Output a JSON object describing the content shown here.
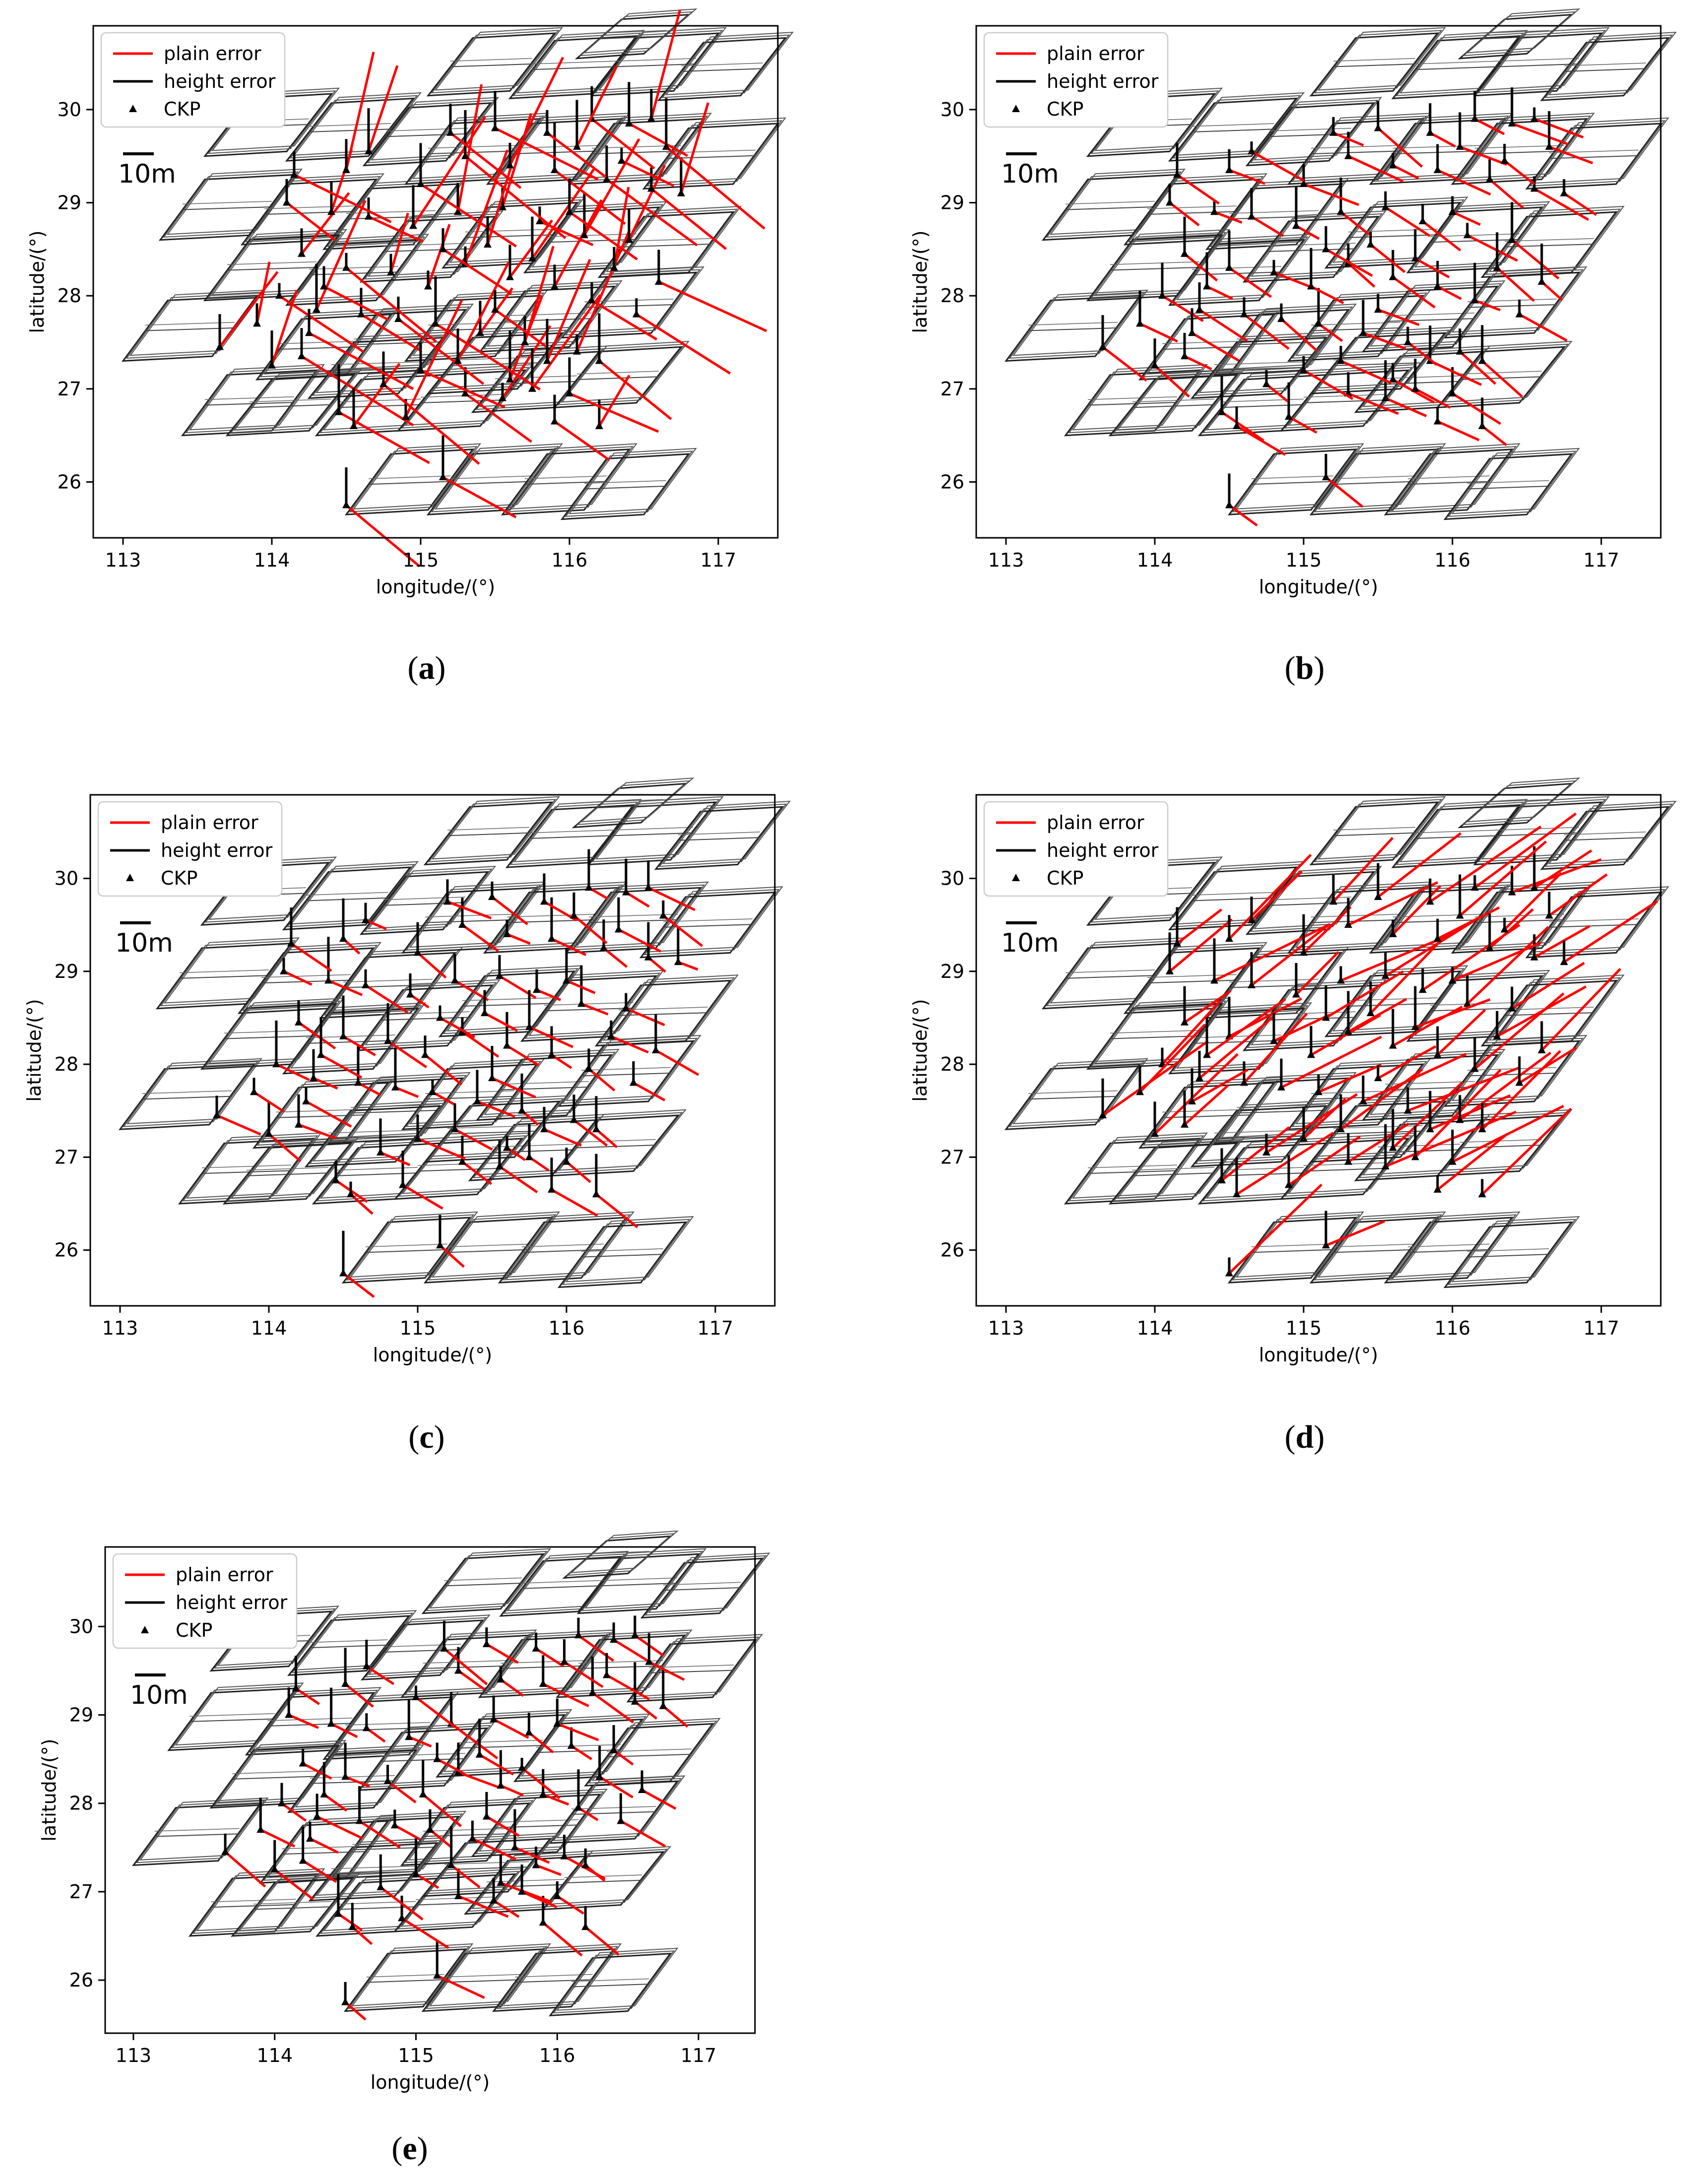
{
  "figure": {
    "panels": [
      {
        "id": "a",
        "caption_open": "(",
        "caption_letter": "a",
        "caption_close": ")",
        "plain_scale": 3.0,
        "height_scale": 1.0
      },
      {
        "id": "b",
        "caption_open": "(",
        "caption_letter": "b",
        "caption_close": ")",
        "plain_scale": 1.4,
        "height_scale": 0.8
      },
      {
        "id": "c",
        "caption_open": "(",
        "caption_letter": "c",
        "caption_close": ")",
        "plain_scale": 1.2,
        "height_scale": 0.9
      },
      {
        "id": "d",
        "caption_open": "(",
        "caption_letter": "d",
        "caption_close": ")",
        "plain_scale": 3.2,
        "height_scale": 0.9
      },
      {
        "id": "e",
        "caption_open": "(",
        "caption_letter": "e",
        "caption_close": ")",
        "plain_scale": 1.3,
        "height_scale": 0.8
      }
    ]
  },
  "chart_data": [
    {
      "panel": "a",
      "type": "scatter",
      "title": "",
      "xlabel": "longitude/(°)",
      "ylabel": "latitude/(°)",
      "xlim": [
        112.8,
        117.4
      ],
      "ylim": [
        25.4,
        30.9
      ],
      "xticks": [
        "113",
        "114",
        "115",
        "116",
        "117"
      ],
      "yticks": [
        "26",
        "27",
        "28",
        "29",
        "30"
      ],
      "legend": {
        "position": "top-left",
        "entries": [
          "plain error",
          "height error",
          "CKP"
        ]
      },
      "scale_bar_label": "10m",
      "series": [
        {
          "name": "CKP"
        },
        {
          "name": "plain error"
        },
        {
          "name": "height error"
        }
      ]
    },
    {
      "panel": "b",
      "type": "scatter",
      "title": "",
      "xlabel": "longitude/(°)",
      "ylabel": "latitude/(°)",
      "xlim": [
        112.8,
        117.4
      ],
      "ylim": [
        25.4,
        30.9
      ],
      "xticks": [
        "113",
        "114",
        "115",
        "116",
        "117"
      ],
      "yticks": [
        "26",
        "27",
        "28",
        "29",
        "30"
      ],
      "legend": {
        "position": "top-left",
        "entries": [
          "plain error",
          "height error",
          "CKP"
        ]
      },
      "scale_bar_label": "10m",
      "series": [
        {
          "name": "CKP"
        },
        {
          "name": "plain error"
        },
        {
          "name": "height error"
        }
      ]
    },
    {
      "panel": "c",
      "type": "scatter",
      "title": "",
      "xlabel": "longitude/(°)",
      "ylabel": "latitude/(°)",
      "xlim": [
        112.8,
        117.4
      ],
      "ylim": [
        25.4,
        30.9
      ],
      "xticks": [
        "113",
        "114",
        "115",
        "116",
        "117"
      ],
      "yticks": [
        "26",
        "27",
        "28",
        "29",
        "30"
      ],
      "legend": {
        "position": "top-left",
        "entries": [
          "plain error",
          "height error",
          "CKP"
        ]
      },
      "scale_bar_label": "10m",
      "series": [
        {
          "name": "CKP"
        },
        {
          "name": "plain error"
        },
        {
          "name": "height error"
        }
      ]
    },
    {
      "panel": "d",
      "type": "scatter",
      "title": "",
      "xlabel": "longitude/(°)",
      "ylabel": "latitude/(°)",
      "xlim": [
        112.8,
        117.4
      ],
      "ylim": [
        25.4,
        30.9
      ],
      "xticks": [
        "113",
        "114",
        "115",
        "116",
        "117"
      ],
      "yticks": [
        "26",
        "27",
        "28",
        "29",
        "30"
      ],
      "legend": {
        "position": "top-left",
        "entries": [
          "plain error",
          "height error",
          "CKP"
        ]
      },
      "scale_bar_label": "10m",
      "series": [
        {
          "name": "CKP"
        },
        {
          "name": "plain error"
        },
        {
          "name": "height error"
        }
      ]
    },
    {
      "panel": "e",
      "type": "scatter",
      "title": "",
      "xlabel": "longitude/(°)",
      "ylabel": "latitude/(°)",
      "xlim": [
        112.8,
        117.4
      ],
      "ylim": [
        25.4,
        30.9
      ],
      "xticks": [
        "113",
        "114",
        "115",
        "116",
        "117"
      ],
      "yticks": [
        "26",
        "27",
        "28",
        "29",
        "30"
      ],
      "legend": {
        "position": "top-left",
        "entries": [
          "plain error",
          "height error",
          "CKP"
        ]
      },
      "scale_bar_label": "10m",
      "series": [
        {
          "name": "CKP"
        },
        {
          "name": "plain error"
        },
        {
          "name": "height error"
        }
      ]
    }
  ],
  "ckp_points": [
    [
      114.5,
      25.75
    ],
    [
      115.15,
      26.05
    ],
    [
      113.65,
      27.45
    ],
    [
      114.0,
      27.25
    ],
    [
      114.2,
      27.35
    ],
    [
      114.45,
      26.75
    ],
    [
      114.55,
      26.6
    ],
    [
      114.9,
      26.7
    ],
    [
      115.3,
      26.95
    ],
    [
      115.55,
      26.9
    ],
    [
      115.9,
      26.65
    ],
    [
      116.2,
      26.6
    ],
    [
      115.6,
      27.1
    ],
    [
      115.75,
      27.0
    ],
    [
      116.0,
      26.95
    ],
    [
      115.85,
      27.3
    ],
    [
      116.05,
      27.4
    ],
    [
      116.2,
      27.3
    ],
    [
      114.05,
      28.0
    ],
    [
      114.3,
      27.85
    ],
    [
      114.6,
      27.8
    ],
    [
      114.85,
      27.75
    ],
    [
      115.1,
      27.7
    ],
    [
      115.4,
      27.6
    ],
    [
      115.7,
      27.5
    ],
    [
      114.2,
      28.45
    ],
    [
      114.5,
      28.3
    ],
    [
      114.8,
      28.25
    ],
    [
      115.05,
      28.1
    ],
    [
      115.3,
      28.35
    ],
    [
      115.6,
      28.2
    ],
    [
      115.9,
      28.1
    ],
    [
      116.15,
      27.95
    ],
    [
      116.45,
      27.8
    ],
    [
      114.1,
      29.0
    ],
    [
      114.4,
      28.9
    ],
    [
      114.65,
      28.85
    ],
    [
      114.95,
      28.75
    ],
    [
      115.25,
      28.9
    ],
    [
      115.55,
      28.95
    ],
    [
      115.8,
      28.8
    ],
    [
      116.1,
      28.65
    ],
    [
      116.4,
      28.6
    ],
    [
      116.6,
      28.15
    ],
    [
      114.15,
      29.3
    ],
    [
      114.5,
      29.35
    ],
    [
      115.0,
      29.2
    ],
    [
      115.3,
      29.5
    ],
    [
      115.6,
      29.4
    ],
    [
      115.9,
      29.35
    ],
    [
      116.25,
      29.25
    ],
    [
      116.55,
      29.15
    ],
    [
      116.75,
      29.1
    ],
    [
      115.2,
      29.75
    ],
    [
      115.5,
      29.8
    ],
    [
      115.85,
      29.75
    ],
    [
      116.15,
      29.9
    ],
    [
      116.4,
      29.85
    ],
    [
      116.55,
      29.9
    ],
    [
      116.05,
      29.6
    ],
    [
      116.35,
      29.45
    ],
    [
      114.75,
      27.05
    ],
    [
      115.0,
      27.2
    ],
    [
      115.25,
      27.3
    ],
    [
      114.35,
      28.1
    ],
    [
      115.45,
      28.55
    ],
    [
      115.15,
      28.5
    ],
    [
      116.3,
      28.3
    ],
    [
      115.75,
      28.4
    ],
    [
      116.0,
      28.9
    ],
    [
      114.25,
      27.6
    ],
    [
      113.9,
      27.7
    ],
    [
      115.5,
      27.85
    ],
    [
      114.65,
      29.55
    ],
    [
      116.65,
      29.6
    ]
  ],
  "footprints": [
    [
      113.55,
      29.5,
      0.55,
      0.62
    ],
    [
      114.1,
      29.45,
      0.55,
      0.62
    ],
    [
      114.62,
      29.4,
      0.55,
      0.62
    ],
    [
      115.05,
      30.15,
      0.55,
      0.62
    ],
    [
      115.6,
      30.12,
      0.55,
      0.62
    ],
    [
      116.15,
      30.15,
      0.55,
      0.62
    ],
    [
      116.6,
      30.1,
      0.55,
      0.62
    ],
    [
      116.05,
      30.55,
      0.45,
      0.42
    ],
    [
      113.25,
      28.6,
      0.6,
      0.65
    ],
    [
      113.8,
      28.55,
      0.6,
      0.65
    ],
    [
      114.35,
      28.5,
      0.6,
      0.65
    ],
    [
      114.9,
      29.2,
      0.6,
      0.65
    ],
    [
      115.45,
      29.2,
      0.6,
      0.65
    ],
    [
      116.0,
      29.2,
      0.6,
      0.65
    ],
    [
      116.5,
      29.15,
      0.6,
      0.65
    ],
    [
      113.0,
      27.3,
      0.6,
      0.65
    ],
    [
      113.55,
      27.95,
      0.6,
      0.65
    ],
    [
      114.1,
      27.9,
      0.6,
      0.65
    ],
    [
      114.6,
      28.15,
      0.6,
      0.65
    ],
    [
      115.15,
      28.3,
      0.6,
      0.65
    ],
    [
      115.7,
      28.25,
      0.6,
      0.65
    ],
    [
      116.2,
      28.2,
      0.6,
      0.65
    ],
    [
      113.4,
      26.5,
      0.6,
      0.65
    ],
    [
      113.9,
      27.1,
      0.6,
      0.65
    ],
    [
      114.4,
      27.15,
      0.6,
      0.65
    ],
    [
      114.9,
      27.3,
      0.6,
      0.65
    ],
    [
      115.4,
      27.4,
      0.6,
      0.65
    ],
    [
      115.95,
      27.55,
      0.6,
      0.65
    ],
    [
      113.7,
      26.5,
      0.55,
      0.6
    ],
    [
      114.3,
      26.5,
      0.55,
      0.6
    ],
    [
      114.85,
      26.55,
      0.55,
      0.6
    ],
    [
      115.35,
      26.75,
      0.55,
      0.6
    ],
    [
      115.9,
      26.8,
      0.55,
      0.6
    ],
    [
      114.5,
      25.65,
      0.55,
      0.65
    ],
    [
      115.05,
      25.65,
      0.55,
      0.65
    ],
    [
      115.55,
      25.65,
      0.55,
      0.65
    ],
    [
      115.95,
      25.6,
      0.55,
      0.65
    ],
    [
      114.25,
      26.9,
      0.6,
      0.6
    ],
    [
      115.05,
      26.95,
      0.6,
      0.6
    ]
  ]
}
